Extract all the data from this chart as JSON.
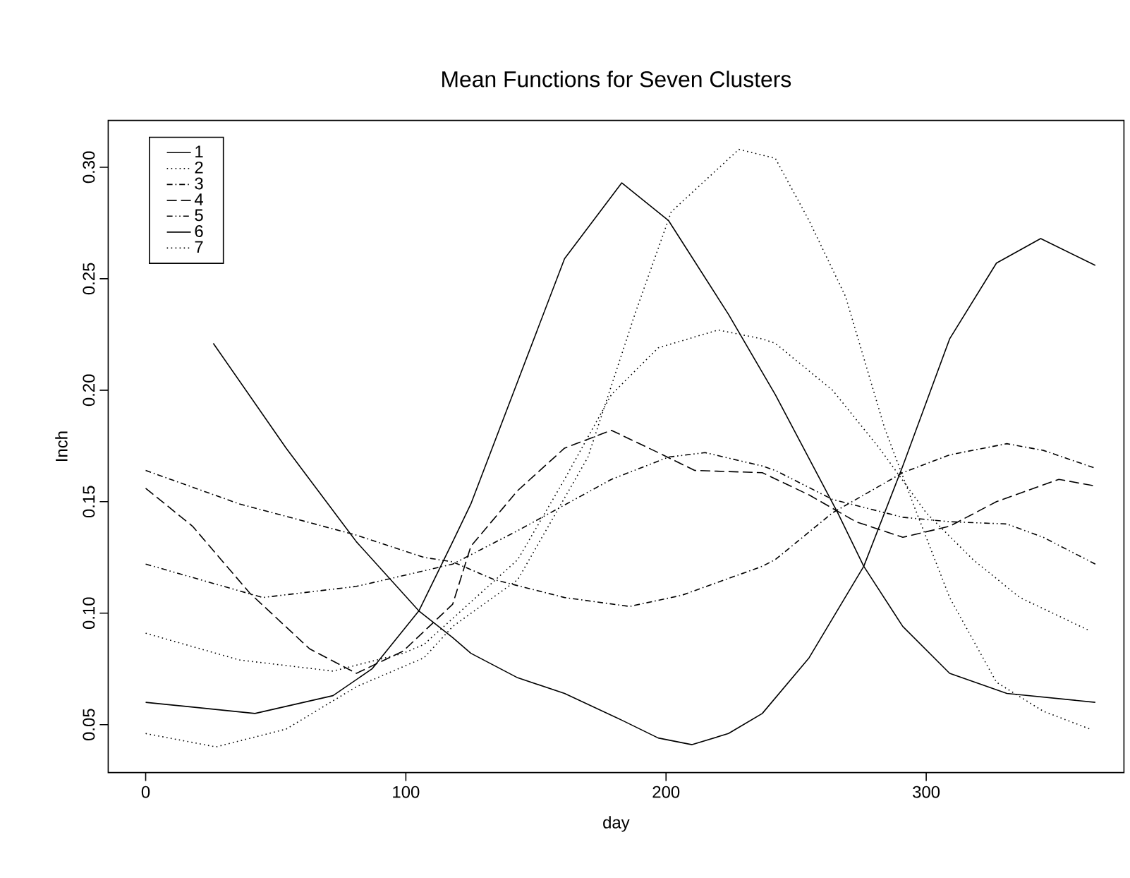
{
  "chart_data": {
    "type": "line",
    "title": "Mean Functions for Seven Clusters",
    "xlabel": "day",
    "ylabel": "Inch",
    "xlim": [
      -14.4,
      376
    ],
    "ylim": [
      0.0285,
      0.321
    ],
    "xticks": [
      0,
      100,
      200,
      300
    ],
    "yticks": [
      {
        "value": 0.05,
        "label": "0.05"
      },
      {
        "value": 0.1,
        "label": "0.10"
      },
      {
        "value": 0.15,
        "label": "0.15"
      },
      {
        "value": 0.2,
        "label": "0.20"
      },
      {
        "value": 0.25,
        "label": "0.25"
      },
      {
        "value": 0.3,
        "label": "0.30"
      }
    ],
    "grid": false,
    "legend": "top left",
    "marker": "none",
    "series": [
      {
        "name": "1",
        "color": "#000000",
        "line_style": "solid",
        "x": [
          0,
          42,
          72,
          87,
          105,
          118,
          125,
          143,
          161,
          183,
          201,
          224,
          242,
          266,
          276,
          291,
          309,
          331,
          365
        ],
        "values": [
          0.06,
          0.055,
          0.063,
          0.075,
          0.101,
          0.132,
          0.149,
          0.204,
          0.259,
          0.293,
          0.276,
          0.234,
          0.198,
          0.145,
          0.121,
          0.094,
          0.073,
          0.064,
          0.06
        ]
      },
      {
        "name": "2",
        "color": "#000000",
        "line_style": "dotted",
        "x": [
          0,
          27,
          54,
          81,
          107,
          118,
          143,
          170,
          188,
          202,
          228,
          242,
          255,
          269,
          284,
          295,
          309,
          327,
          345,
          363
        ],
        "values": [
          0.046,
          0.04,
          0.048,
          0.067,
          0.08,
          0.094,
          0.115,
          0.17,
          0.234,
          0.28,
          0.308,
          0.304,
          0.276,
          0.242,
          0.183,
          0.149,
          0.107,
          0.069,
          0.056,
          0.048
        ]
      },
      {
        "name": "3",
        "color": "#000000",
        "line_style": "dashdot",
        "x": [
          0,
          36,
          81,
          107,
          118,
          134,
          161,
          186,
          206,
          237,
          242,
          264,
          291,
          309,
          331,
          345,
          365
        ],
        "values": [
          0.164,
          0.149,
          0.135,
          0.125,
          0.123,
          0.115,
          0.107,
          0.103,
          0.108,
          0.121,
          0.124,
          0.145,
          0.163,
          0.171,
          0.176,
          0.173,
          0.165
        ]
      },
      {
        "name": "4",
        "color": "#000000",
        "line_style": "longdash",
        "x": [
          0,
          18,
          40,
          63,
          81,
          99,
          118,
          125,
          143,
          161,
          179,
          197,
          211,
          237,
          255,
          273,
          291,
          309,
          327,
          351,
          365
        ],
        "values": [
          0.156,
          0.139,
          0.109,
          0.084,
          0.073,
          0.083,
          0.104,
          0.13,
          0.155,
          0.174,
          0.182,
          0.172,
          0.164,
          0.163,
          0.153,
          0.141,
          0.134,
          0.139,
          0.15,
          0.16,
          0.157
        ]
      },
      {
        "name": "5",
        "color": "#000000",
        "line_style": "dashdotdot",
        "x": [
          0,
          45,
          81,
          107,
          118,
          143,
          179,
          201,
          215,
          237,
          242,
          264,
          291,
          309,
          331,
          345,
          365
        ],
        "values": [
          0.122,
          0.107,
          0.112,
          0.119,
          0.122,
          0.137,
          0.16,
          0.17,
          0.172,
          0.166,
          0.164,
          0.151,
          0.143,
          0.141,
          0.14,
          0.134,
          0.122
        ]
      },
      {
        "name": "6",
        "color": "#000000",
        "line_style": "solid",
        "x": [
          26,
          54,
          81,
          105,
          118,
          125,
          143,
          161,
          183,
          197,
          210,
          224,
          237,
          255,
          276,
          291,
          309,
          327,
          344,
          365
        ],
        "values": [
          0.221,
          0.174,
          0.132,
          0.101,
          0.089,
          0.082,
          0.071,
          0.064,
          0.052,
          0.044,
          0.041,
          0.046,
          0.055,
          0.08,
          0.121,
          0.166,
          0.223,
          0.257,
          0.268,
          0.256
        ]
      },
      {
        "name": "7",
        "color": "#000000",
        "line_style": "dotted",
        "x": [
          0,
          36,
          72,
          99,
          107,
          143,
          161,
          179,
          197,
          220,
          237,
          242,
          264,
          282,
          300,
          318,
          336,
          363
        ],
        "values": [
          0.091,
          0.079,
          0.074,
          0.082,
          0.086,
          0.124,
          0.16,
          0.198,
          0.219,
          0.227,
          0.223,
          0.221,
          0.2,
          0.174,
          0.145,
          0.124,
          0.107,
          0.092
        ]
      }
    ]
  }
}
